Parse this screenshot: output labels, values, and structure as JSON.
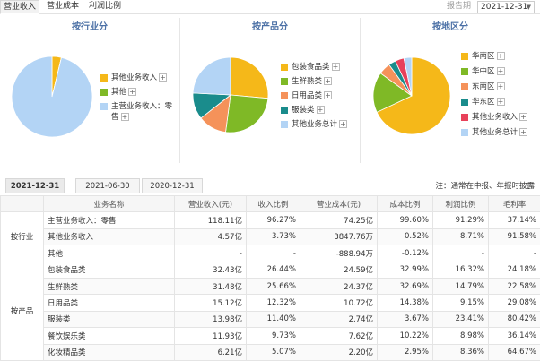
{
  "top_tabs": [
    "营业收入",
    "营业成本",
    "利润比例"
  ],
  "period_label": "报告期",
  "period_value": "2021-12-31",
  "panels": [
    {
      "title": "按行业分",
      "slices": [
        {
          "label": "其他业务收入",
          "value": 3.73,
          "color": "#f5b819"
        },
        {
          "label": "其他",
          "value": 0.01,
          "color": "#7fb926"
        },
        {
          "label": "主营业务收入：零售",
          "value": 96.27,
          "color": "#b3d4f5"
        }
      ],
      "legend": [
        {
          "label": "其他业务收入",
          "color": "#f5b819"
        },
        {
          "label": "其他",
          "color": "#7fb926"
        },
        {
          "label": "主营业务收入：零",
          "label2": "售",
          "color": "#b3d4f5"
        }
      ]
    },
    {
      "title": "按产品分",
      "slices": [
        {
          "label": "包装食品类",
          "value": 26.44,
          "color": "#f5b819"
        },
        {
          "label": "生鲜熟类",
          "value": 25.66,
          "color": "#7fb926"
        },
        {
          "label": "日用品类",
          "value": 12.32,
          "color": "#f5925a"
        },
        {
          "label": "服装类",
          "value": 11.4,
          "color": "#1a8c8c"
        },
        {
          "label": "其他业务总计",
          "value": 24.18,
          "color": "#b3d4f5"
        }
      ],
      "legend": [
        {
          "label": "包装食品类",
          "color": "#f5b819"
        },
        {
          "label": "生鲜熟类",
          "color": "#7fb926"
        },
        {
          "label": "日用品类",
          "color": "#f5925a"
        },
        {
          "label": "服装类",
          "color": "#1a8c8c"
        },
        {
          "label": "其他业务总计",
          "color": "#b3d4f5"
        }
      ]
    },
    {
      "title": "按地区分",
      "slices": [
        {
          "label": "华南区",
          "value": 68,
          "color": "#f5b819"
        },
        {
          "label": "华中区",
          "value": 17,
          "color": "#7fb926"
        },
        {
          "label": "东南区",
          "value": 5,
          "color": "#f5925a"
        },
        {
          "label": "华东区",
          "value": 3,
          "color": "#1a8c8c"
        },
        {
          "label": "其他业务收入",
          "value": 3.7,
          "color": "#e8415a"
        },
        {
          "label": "其他业务总计",
          "value": 3.3,
          "color": "#b3d4f5"
        }
      ],
      "legend": [
        {
          "label": "华南区",
          "color": "#f5b819"
        },
        {
          "label": "华中区",
          "color": "#7fb926"
        },
        {
          "label": "东南区",
          "color": "#f5925a"
        },
        {
          "label": "华东区",
          "color": "#1a8c8c"
        },
        {
          "label": "其他业务收入",
          "color": "#e8415a"
        },
        {
          "label": "其他业务总计",
          "color": "#b3d4f5"
        }
      ]
    }
  ],
  "plus_glyph": "+",
  "period_tabs": [
    "2021-12-31",
    "2021-06-30",
    "2020-12-31"
  ],
  "note": "注：通常在中报、年报时披露",
  "table": {
    "headers": [
      "业务名称",
      "营业收入(元)",
      "收入比例",
      "营业成本(元)",
      "成本比例",
      "利润比例",
      "毛利率"
    ],
    "groups": [
      {
        "name": "按行业",
        "rows": [
          [
            "主营业务收入：零售",
            "118.11亿",
            "96.27%",
            "74.25亿",
            "99.60%",
            "91.29%",
            "37.14%"
          ],
          [
            "其他业务收入",
            "4.57亿",
            "3.73%",
            "3847.76万",
            "0.52%",
            "8.71%",
            "91.58%"
          ],
          [
            "其他",
            "-",
            "-",
            "-888.94万",
            "-0.12%",
            "-",
            "-"
          ]
        ]
      },
      {
        "name": "按产品",
        "rows": [
          [
            "包装食品类",
            "32.43亿",
            "26.44%",
            "24.59亿",
            "32.99%",
            "16.32%",
            "24.18%"
          ],
          [
            "生鲜熟类",
            "31.48亿",
            "25.66%",
            "24.37亿",
            "32.69%",
            "14.79%",
            "22.58%"
          ],
          [
            "日用品类",
            "15.12亿",
            "12.32%",
            "10.72亿",
            "14.38%",
            "9.15%",
            "29.08%"
          ],
          [
            "服装类",
            "13.98亿",
            "11.40%",
            "2.74亿",
            "3.67%",
            "23.41%",
            "80.42%"
          ],
          [
            "餐饮娱乐类",
            "11.93亿",
            "9.73%",
            "7.62亿",
            "10.22%",
            "8.98%",
            "36.14%"
          ],
          [
            "化妆精品类",
            "6.21亿",
            "5.07%",
            "2.20亿",
            "2.95%",
            "8.36%",
            "64.67%"
          ]
        ]
      }
    ]
  }
}
